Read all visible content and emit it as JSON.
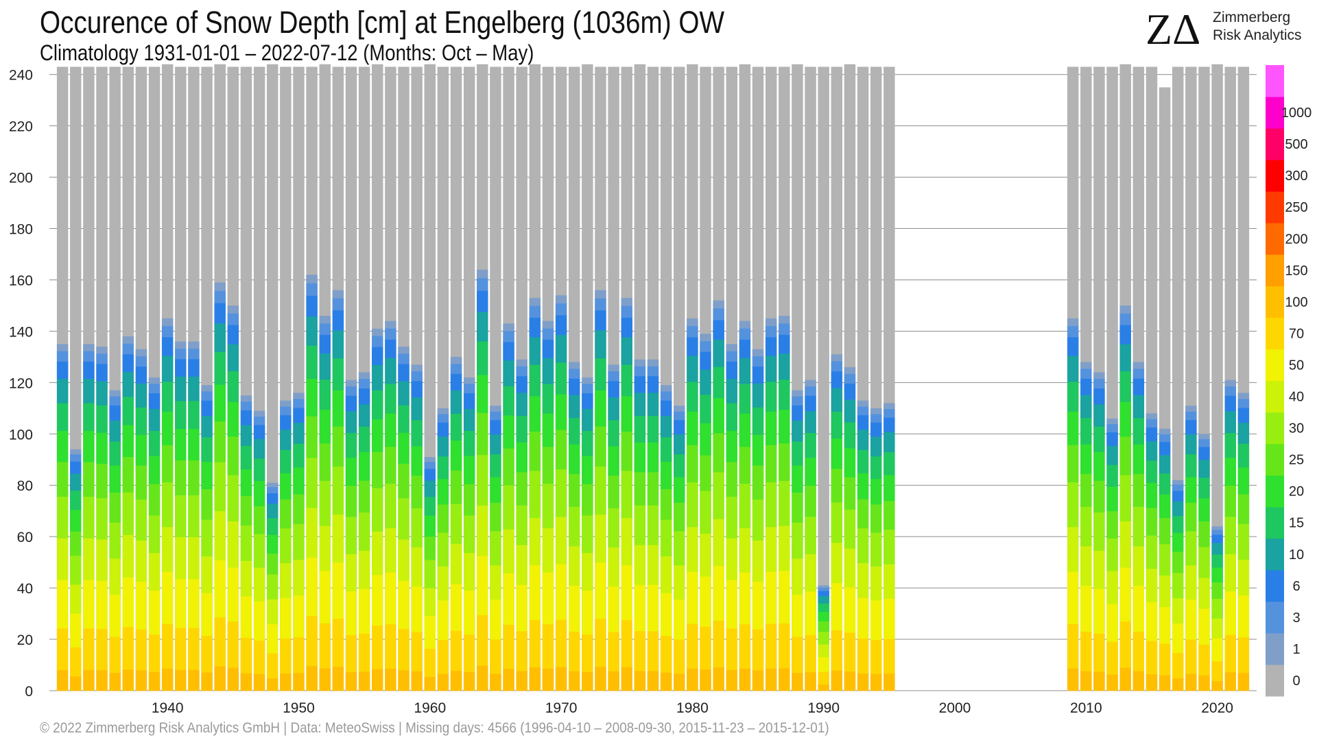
{
  "header": {
    "title": "Occurence of Snow Depth [cm] at Engelberg (1036m) OW",
    "subtitle": "Climatology 1931-01-01 – 2022-07-12 (Months: Oct – May)"
  },
  "logo": {
    "mark": "ZΔ",
    "name": "Zimmerberg",
    "sub": "Risk Analytics"
  },
  "footer": {
    "text": "©  2022 Zimmerberg Risk Analytics GmbH | Data: MeteoSwiss | Missing days: 4566 (1996-04-10 – 2008-09-30, 2015-11-23 – 2015-12-01)"
  },
  "chart_data": {
    "type": "bar",
    "stacked": true,
    "x": [
      1932,
      1933,
      1934,
      1935,
      1936,
      1937,
      1938,
      1939,
      1940,
      1941,
      1942,
      1943,
      1944,
      1945,
      1946,
      1947,
      1948,
      1949,
      1950,
      1951,
      1952,
      1953,
      1954,
      1955,
      1956,
      1957,
      1958,
      1959,
      1960,
      1961,
      1962,
      1963,
      1964,
      1965,
      1966,
      1967,
      1968,
      1969,
      1970,
      1971,
      1972,
      1973,
      1974,
      1975,
      1976,
      1977,
      1978,
      1979,
      1980,
      1981,
      1982,
      1983,
      1984,
      1985,
      1986,
      1987,
      1988,
      1989,
      1990,
      1991,
      1992,
      1993,
      1994,
      1995,
      2009,
      2010,
      2011,
      2012,
      2013,
      2014,
      2015,
      2016,
      2017,
      2018,
      2019,
      2020,
      2021,
      2022
    ],
    "totals": [
      243,
      243,
      243,
      243,
      243,
      243,
      243,
      243,
      244,
      243,
      243,
      243,
      244,
      243,
      243,
      243,
      244,
      243,
      243,
      243,
      244,
      243,
      243,
      243,
      244,
      243,
      243,
      243,
      244,
      243,
      243,
      243,
      244,
      243,
      243,
      243,
      244,
      243,
      243,
      243,
      244,
      243,
      243,
      243,
      244,
      243,
      243,
      243,
      244,
      243,
      243,
      243,
      244,
      243,
      243,
      243,
      244,
      243,
      243,
      243,
      244,
      243,
      243,
      243,
      243,
      243,
      243,
      243,
      244,
      243,
      243,
      235,
      243,
      243,
      243,
      244,
      243,
      243
    ],
    "snow_days": [
      135,
      94,
      135,
      134,
      117,
      138,
      133,
      122,
      145,
      136,
      136,
      119,
      159,
      150,
      115,
      109,
      81,
      113,
      116,
      162,
      146,
      156,
      121,
      124,
      141,
      144,
      134,
      127,
      91,
      110,
      130,
      122,
      164,
      111,
      143,
      129,
      153,
      144,
      154,
      128,
      122,
      156,
      127,
      153,
      129,
      129,
      119,
      111,
      145,
      139,
      152,
      135,
      144,
      133,
      145,
      146,
      117,
      121,
      41,
      131,
      126,
      113,
      110,
      112,
      145,
      128,
      124,
      106,
      150,
      128,
      108,
      102,
      82,
      111,
      100,
      64,
      121,
      116
    ],
    "thresholds_cm": [
      "0",
      "1",
      "3",
      "6",
      "10",
      "15",
      "20",
      "25",
      "30",
      "40",
      "50",
      "70",
      "100",
      "150",
      "200",
      "250",
      "300",
      "500",
      "1000"
    ],
    "colorbar_labels": [
      "0",
      "1",
      "3",
      "6",
      "10",
      "15",
      "20",
      "25",
      "30",
      "40",
      "50",
      "70",
      "100",
      "150",
      "200",
      "250",
      "300",
      "500",
      "1000"
    ],
    "colors": {
      "0": "#b3b3b3",
      "1": "#7f9fc9",
      "3": "#5592dd",
      "6": "#2a7fe6",
      "10": "#1aa3a0",
      "15": "#1fc760",
      "20": "#2fe02f",
      "25": "#66e61a",
      "30": "#99ee11",
      "40": "#ccf20a",
      "50": "#f2f205",
      "70": "#ffd700",
      "100": "#ffbf00",
      "150": "#ff9f00",
      "200": "#ff6a00",
      "250": "#ff3a00",
      "300": "#ff0000",
      "500": "#ff0066",
      "1000": "#ff00cc",
      "top": "#ff55ff"
    },
    "xlabel": "",
    "ylabel": "",
    "xticks": [
      1940,
      1950,
      1960,
      1970,
      1980,
      1990,
      2000,
      2010,
      2020
    ],
    "yticks": [
      0,
      20,
      40,
      60,
      80,
      100,
      120,
      140,
      160,
      180,
      200,
      220,
      240
    ],
    "xlim": [
      1931,
      2023
    ],
    "ylim": [
      0,
      245
    ],
    "grid": true,
    "legend": "colorbar-right"
  }
}
